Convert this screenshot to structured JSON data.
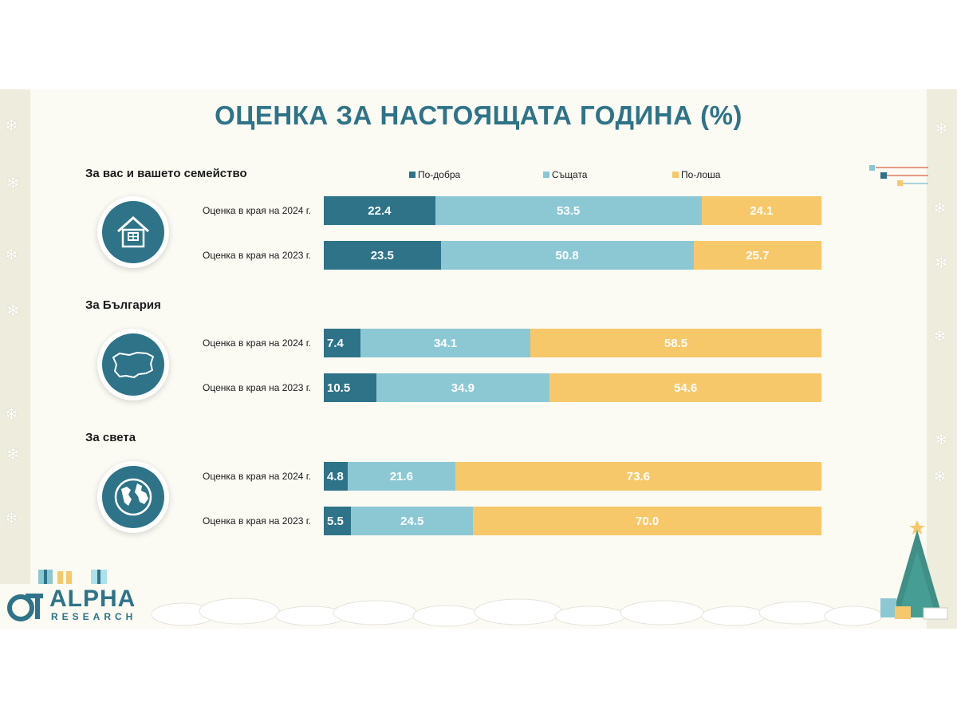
{
  "title": "ОЦЕНКА ЗА НАСТОЯЩАТА ГОДИНА (%)",
  "colors": {
    "better": "#2e7388",
    "same": "#8cc8d4",
    "worse": "#f7c86a",
    "title": "#2e7388"
  },
  "legend": [
    {
      "label": "По-добра",
      "color": "#2e7388"
    },
    {
      "label": "Същата",
      "color": "#8cc8d4"
    },
    {
      "label": "По-лоша",
      "color": "#f7c86a"
    }
  ],
  "sections": [
    {
      "title": "За вас и вашето семейство",
      "icon": "house-icon",
      "rows": [
        {
          "label": "Оценка в края на 2024 г."
        },
        {
          "label": "Оценка в края на 2023 г."
        }
      ]
    },
    {
      "title": "За България",
      "icon": "bulgaria-map-icon",
      "rows": [
        {
          "label": "Оценка в края на 2024 г."
        },
        {
          "label": "Оценка в края на 2023 г."
        }
      ]
    },
    {
      "title": "За света",
      "icon": "globe-icon",
      "rows": [
        {
          "label": "Оценка в края на 2024 г."
        },
        {
          "label": "Оценка в края на 2023 г."
        }
      ]
    }
  ],
  "chart_data": {
    "type": "bar",
    "orientation": "horizontal",
    "stacked": true,
    "percent_scale": true,
    "categories": [
      "Оценка в края на 2024 г.",
      "Оценка в края на 2023 г.",
      "Оценка в края на 2024 г.",
      "Оценка в края на 2023 г.",
      "Оценка в края на 2024 г.",
      "Оценка в края на 2023 г."
    ],
    "groups": [
      "За вас и вашето семейство",
      "За вас и вашето семейство",
      "За България",
      "За България",
      "За света",
      "За света"
    ],
    "series": [
      {
        "name": "По-добра",
        "values": [
          22.4,
          23.5,
          7.4,
          10.5,
          4.8,
          5.5
        ],
        "labels": [
          "22.4",
          "23.5",
          "7.4",
          "10.5",
          "4.8",
          "5.5"
        ]
      },
      {
        "name": "Същата",
        "values": [
          53.5,
          50.8,
          34.1,
          34.9,
          21.6,
          24.5
        ],
        "labels": [
          "53.5",
          "50.8",
          "34.1",
          "34.9",
          "21.6",
          "24.5"
        ]
      },
      {
        "name": "По-лоша",
        "values": [
          24.1,
          25.7,
          58.5,
          54.6,
          73.6,
          70.0
        ],
        "labels": [
          "24.1",
          "25.7",
          "58.5",
          "54.6",
          "73.6",
          "70.0"
        ]
      }
    ],
    "xlim": [
      0,
      100
    ],
    "legend": "top"
  },
  "logo": {
    "name": "ALPHA",
    "sub": "RESEARCH"
  }
}
